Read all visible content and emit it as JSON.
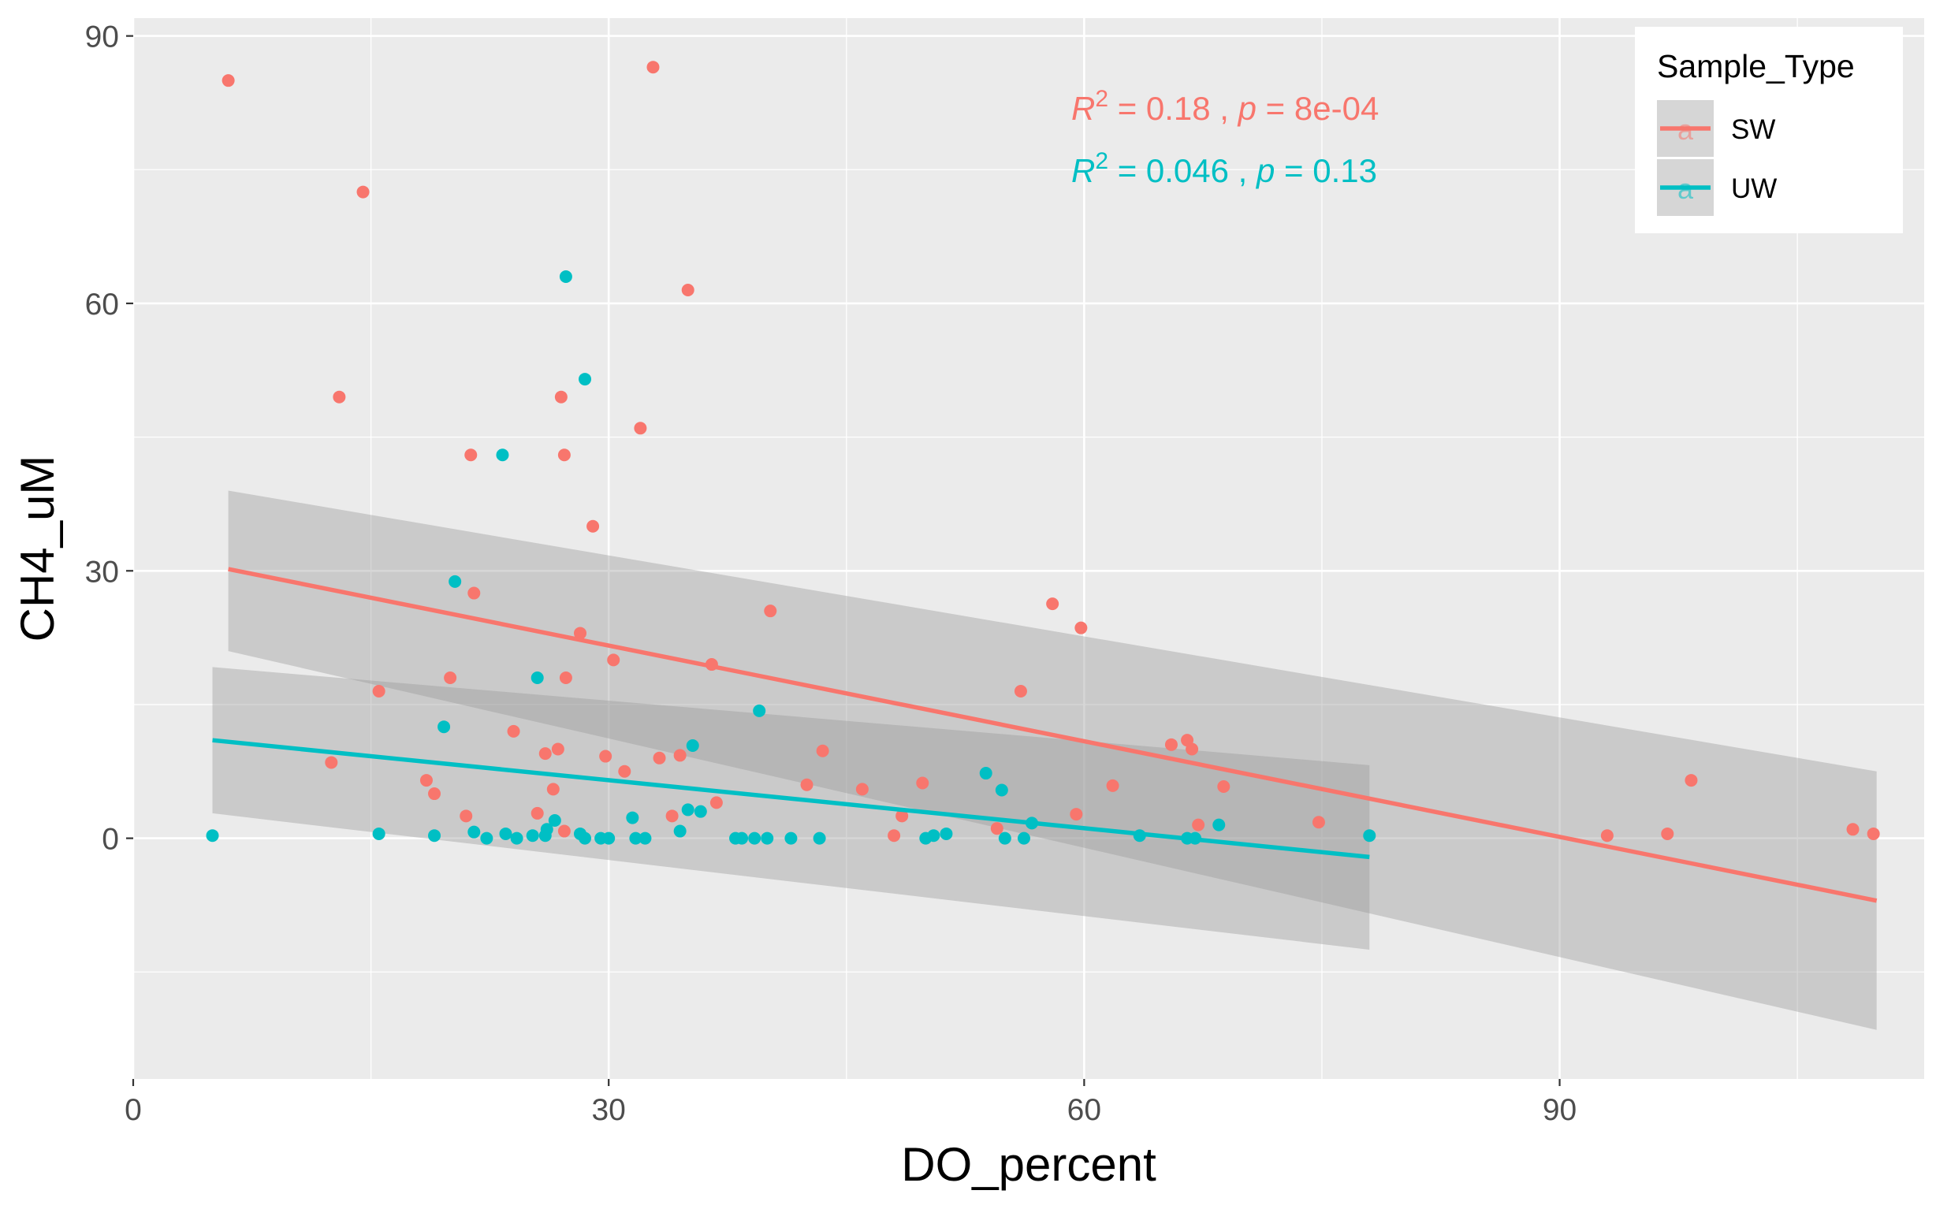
{
  "chart_data": {
    "type": "scatter",
    "title": "",
    "xlabel": "DO_percent",
    "ylabel": "CH4_uM",
    "xlim": [
      0,
      113
    ],
    "ylim": [
      -27,
      92
    ],
    "x_ticks": [
      0,
      30,
      60,
      90
    ],
    "x_tick_labels": [
      "0",
      "30",
      "60",
      "90"
    ],
    "y_ticks": [
      0,
      30,
      60,
      90
    ],
    "y_tick_labels": [
      "0",
      "30",
      "60",
      "90"
    ],
    "grid": true,
    "panel_background": "#ebebeb",
    "ribbon_color": "#999999",
    "legend": {
      "title": "Sample_Type",
      "position": "top-right",
      "glyph_letter": "a"
    },
    "series": [
      {
        "name": "SW",
        "color": "#f8766d",
        "points": [
          [
            6,
            85
          ],
          [
            14.5,
            72.5
          ],
          [
            13,
            49.5
          ],
          [
            12.5,
            8.5
          ],
          [
            15.5,
            16.5
          ],
          [
            18.5,
            6.5
          ],
          [
            19,
            5
          ],
          [
            20,
            18
          ],
          [
            21,
            2.5
          ],
          [
            21.3,
            43
          ],
          [
            21.5,
            27.5
          ],
          [
            24,
            12
          ],
          [
            25.5,
            2.8
          ],
          [
            26,
            9.5
          ],
          [
            26.5,
            5.5
          ],
          [
            26.8,
            10
          ],
          [
            27,
            49.5
          ],
          [
            27.2,
            43
          ],
          [
            27.3,
            18
          ],
          [
            27.2,
            0.8
          ],
          [
            28.2,
            23
          ],
          [
            29,
            35
          ],
          [
            29.8,
            9.2
          ],
          [
            30.3,
            20
          ],
          [
            31,
            7.5
          ],
          [
            32,
            46
          ],
          [
            32.8,
            86.5
          ],
          [
            33.2,
            9
          ],
          [
            34,
            2.5
          ],
          [
            34.5,
            9.3
          ],
          [
            35,
            61.5
          ],
          [
            36.5,
            19.5
          ],
          [
            36.8,
            4
          ],
          [
            40.2,
            25.5
          ],
          [
            42.5,
            6
          ],
          [
            43.5,
            9.8
          ],
          [
            46,
            5.5
          ],
          [
            48,
            0.3
          ],
          [
            48.5,
            2.5
          ],
          [
            49.8,
            6.2
          ],
          [
            54.5,
            1.1
          ],
          [
            56,
            16.5
          ],
          [
            58,
            26.3
          ],
          [
            59.5,
            2.7
          ],
          [
            59.8,
            23.6
          ],
          [
            61.8,
            5.9
          ],
          [
            65.5,
            10.5
          ],
          [
            66.5,
            11
          ],
          [
            66.8,
            10
          ],
          [
            67.2,
            1.5
          ],
          [
            68.8,
            5.8
          ],
          [
            74.8,
            1.8
          ],
          [
            93,
            0.3
          ],
          [
            96.8,
            0.5
          ],
          [
            98.3,
            6.5
          ],
          [
            108.5,
            1
          ],
          [
            109.8,
            0.5
          ]
        ],
        "trend": {
          "x": [
            6,
            110
          ],
          "y": [
            30.2,
            -7
          ],
          "ci_lower": [
            21,
            -21.5
          ],
          "ci_upper": [
            39,
            7.5
          ]
        },
        "annotation": {
          "r2": "0.18",
          "p": "8e-04"
        }
      },
      {
        "name": "UW",
        "color": "#00bfc4",
        "points": [
          [
            5,
            0.3
          ],
          [
            15.5,
            0.5
          ],
          [
            19,
            0.3
          ],
          [
            19.6,
            12.5
          ],
          [
            20.3,
            28.8
          ],
          [
            21.5,
            0.7
          ],
          [
            22.3,
            0
          ],
          [
            23.3,
            43
          ],
          [
            23.5,
            0.5
          ],
          [
            24.2,
            0
          ],
          [
            25.2,
            0.3
          ],
          [
            25.5,
            18
          ],
          [
            26,
            0.3
          ],
          [
            26.1,
            1
          ],
          [
            26.6,
            2
          ],
          [
            27.3,
            63
          ],
          [
            28.2,
            0.5
          ],
          [
            28.5,
            51.5
          ],
          [
            28.5,
            0
          ],
          [
            29.5,
            0
          ],
          [
            30,
            0
          ],
          [
            31.5,
            2.3
          ],
          [
            31.7,
            0
          ],
          [
            32.3,
            0
          ],
          [
            34.5,
            0.8
          ],
          [
            35,
            3.2
          ],
          [
            35.3,
            10.4
          ],
          [
            35.8,
            3
          ],
          [
            38,
            0
          ],
          [
            38.4,
            0
          ],
          [
            39.2,
            0
          ],
          [
            39.5,
            14.3
          ],
          [
            40,
            0
          ],
          [
            41.5,
            0
          ],
          [
            43.3,
            0
          ],
          [
            50,
            0
          ],
          [
            50.5,
            0.3
          ],
          [
            51.3,
            0.5
          ],
          [
            53.8,
            7.3
          ],
          [
            54.8,
            5.4
          ],
          [
            55,
            0
          ],
          [
            56.2,
            0
          ],
          [
            56.7,
            1.7
          ],
          [
            63.5,
            0.3
          ],
          [
            66.5,
            0
          ],
          [
            67,
            0
          ],
          [
            68.5,
            1.5
          ],
          [
            78,
            0.3
          ]
        ],
        "trend": {
          "x": [
            5,
            78
          ],
          "y": [
            11,
            -2.1
          ],
          "ci_lower": [
            2.8,
            -12.5
          ],
          "ci_upper": [
            19.2,
            8.2
          ]
        },
        "annotation": {
          "r2": "0.046",
          "p": "0.13"
        }
      }
    ]
  },
  "stat_labels": {
    "r_symbol": "R",
    "r_exponent": "2",
    "equals": " = ",
    "separator": " , ",
    "p_symbol": "p"
  }
}
